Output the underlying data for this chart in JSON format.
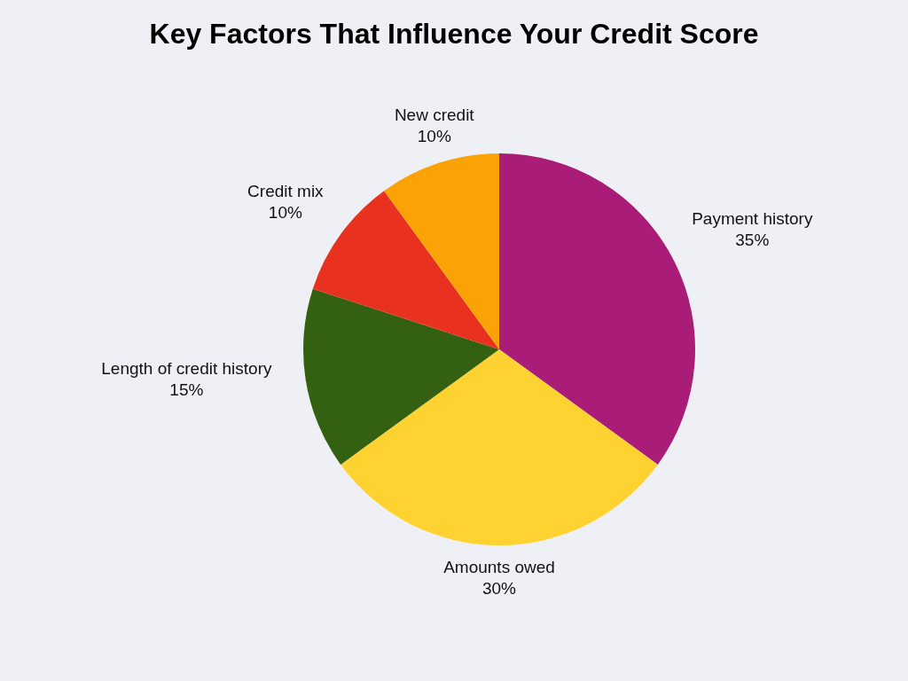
{
  "chart_data": {
    "type": "pie",
    "title": "Key Factors That Influence Your Credit Score",
    "categories": [
      "Payment history",
      "Amounts owed",
      "Length of credit history",
      "Credit mix",
      "New credit"
    ],
    "values": [
      35,
      30,
      15,
      10,
      10
    ],
    "value_labels": [
      "35%",
      "30%",
      "15%",
      "10%",
      "10%"
    ],
    "colors": [
      "#a91d78",
      "#fdd231",
      "#336111",
      "#e8321f",
      "#fba206"
    ]
  }
}
